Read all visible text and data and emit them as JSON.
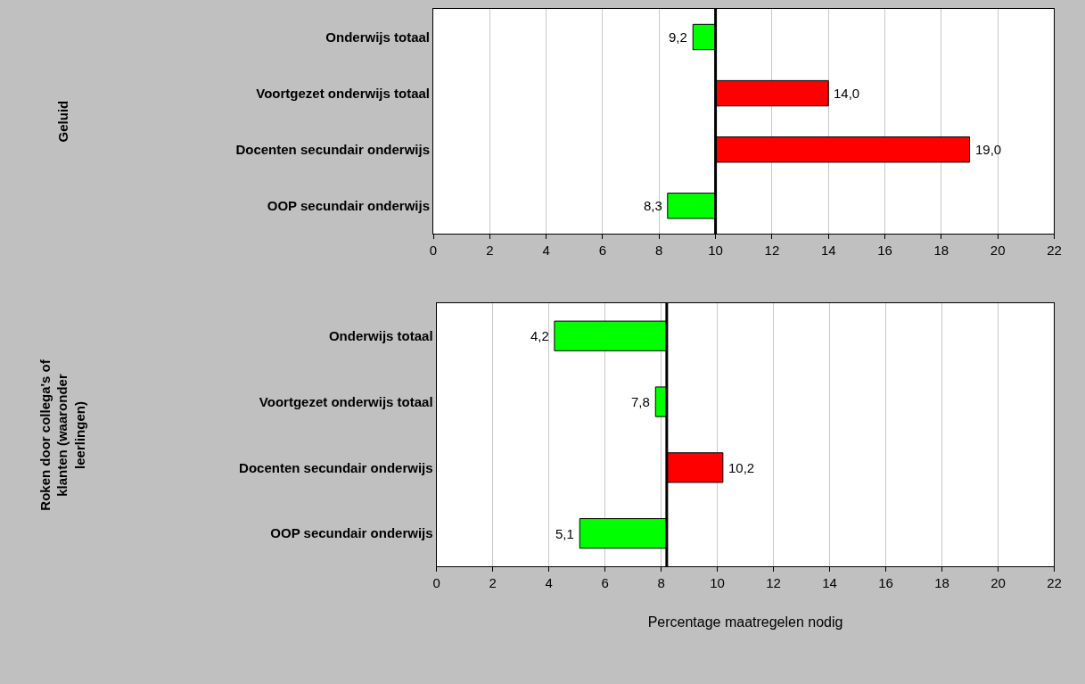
{
  "chart_data": [
    {
      "type": "bar",
      "orientation": "horizontal",
      "ylabel": "Geluid",
      "categories": [
        "Onderwijs totaal",
        "Voortgezet onderwijs totaal",
        "Docenten secundair onderwijs",
        "OOP secundair onderwijs"
      ],
      "values": [
        -0.8,
        4.0,
        9.0,
        -1.7
      ],
      "base": [
        10,
        10,
        10,
        10
      ],
      "colors": [
        "#00ff00",
        "#ff0000",
        "#ff0000",
        "#00ff00"
      ],
      "value_labels": [
        "9,2",
        "14,0",
        "19,0",
        "8,3"
      ],
      "xlim": [
        0,
        22
      ],
      "xticks": [
        0,
        2,
        4,
        6,
        8,
        10,
        12,
        14,
        16,
        18,
        20,
        22
      ],
      "grid": "x",
      "ref_lines": [
        {
          "axis": "x",
          "value": 10,
          "color": "#000000"
        }
      ]
    },
    {
      "type": "bar",
      "orientation": "horizontal",
      "ylabel": "Roken door collega's of klanten (waaronder leerlingen)",
      "xlabel": "Percentage maatregelen nodig",
      "categories": [
        "Onderwijs totaal",
        "Voortgezet onderwijs totaal",
        "Docenten secundair onderwijs",
        "OOP secundair onderwijs"
      ],
      "values": [
        -4.0,
        -0.4,
        2.0,
        -3.1
      ],
      "base": [
        8.2,
        8.2,
        8.2,
        8.2
      ],
      "colors": [
        "#00ff00",
        "#00ff00",
        "#ff0000",
        "#00ff00"
      ],
      "value_labels": [
        "4,2",
        "7,8",
        "10,2",
        "5,1"
      ],
      "xlim": [
        0,
        22
      ],
      "xticks": [
        0,
        2,
        4,
        6,
        8,
        10,
        12,
        14,
        16,
        18,
        20,
        22
      ],
      "grid": "x",
      "ref_lines": [
        {
          "axis": "x",
          "value": 8.2,
          "color": "#000000"
        }
      ]
    }
  ]
}
